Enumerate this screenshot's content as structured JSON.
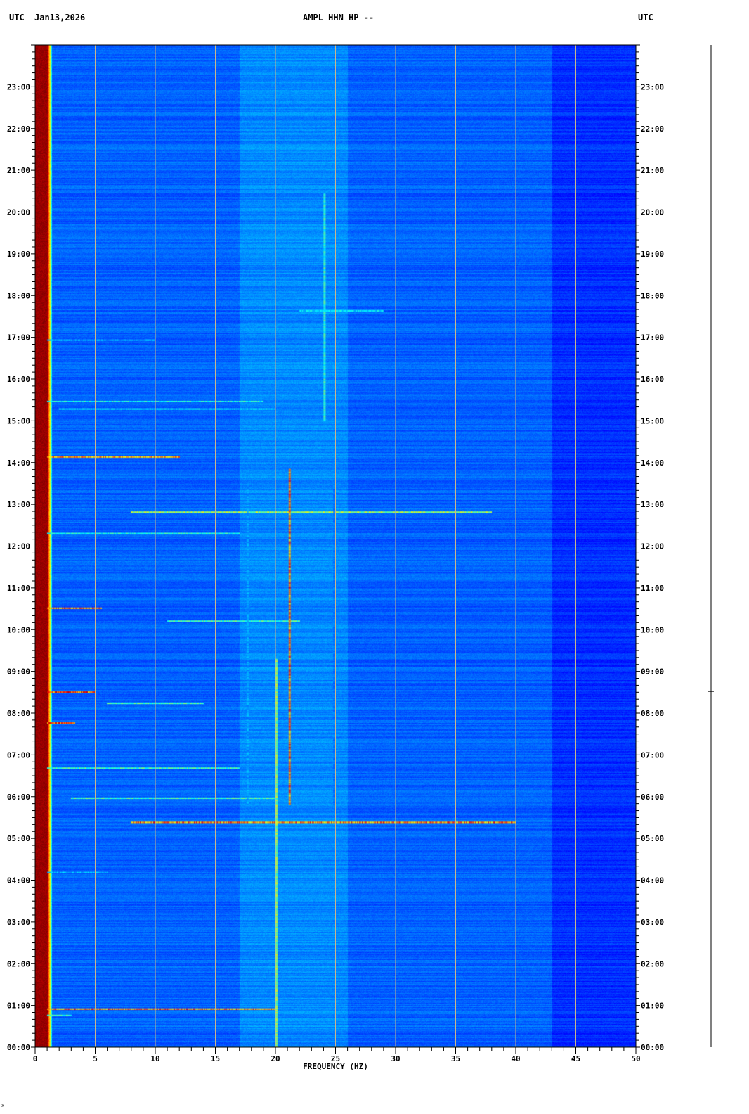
{
  "header": {
    "left_tz": "UTC",
    "date": "Jan13,2026",
    "title": "AMPL HHN HP --",
    "right_tz": "UTC"
  },
  "footer_mark": "x",
  "chart_data": {
    "type": "heatmap",
    "title": "AMPL HHN HP --",
    "xlabel": "FREQUENCY (HZ)",
    "ylabel": "UTC",
    "xlim": [
      0,
      50
    ],
    "ylim_hours": [
      0,
      24
    ],
    "x_ticks": [
      "0",
      "5",
      "10",
      "15",
      "20",
      "25",
      "30",
      "35",
      "40",
      "45",
      "50"
    ],
    "y_ticks": [
      "00:00",
      "01:00",
      "02:00",
      "03:00",
      "04:00",
      "05:00",
      "06:00",
      "07:00",
      "08:00",
      "09:00",
      "10:00",
      "11:00",
      "12:00",
      "13:00",
      "14:00",
      "15:00",
      "16:00",
      "17:00",
      "18:00",
      "19:00",
      "20:00",
      "21:00",
      "22:00",
      "23:00"
    ],
    "grid": "vertical lines every 5 Hz",
    "colormap": "jet (blue low, red high)",
    "colors": {
      "background": "#0a1ec0",
      "grid": "#c8b48c",
      "high": "#8b0000"
    },
    "low_frequency_band": {
      "fmin": 0,
      "fmax": 1.2,
      "intensity": "high, all day"
    },
    "frequency_lines": [
      {
        "freq": 20.0,
        "start": 0.0,
        "end": 9.3,
        "intensity": 0.55
      },
      {
        "freq": 21.1,
        "start": 5.8,
        "end": 13.85,
        "intensity": 0.8
      },
      {
        "freq": 24.0,
        "start": 15.0,
        "end": 20.45,
        "intensity": 0.45
      },
      {
        "freq": 17.6,
        "start": 5.8,
        "end": 13.5,
        "intensity": 0.3
      },
      {
        "freq": 24.8,
        "start": 5.8,
        "end": 13.5,
        "intensity": 0.25
      }
    ],
    "events": [
      {
        "time": 0.93,
        "fmin": 1,
        "fmax": 20,
        "intensity": 0.85
      },
      {
        "time": 0.78,
        "fmin": 1,
        "fmax": 3,
        "intensity": 0.5
      },
      {
        "time": 4.2,
        "fmin": 1,
        "fmax": 6,
        "intensity": 0.35
      },
      {
        "time": 5.4,
        "fmin": 8,
        "fmax": 40,
        "intensity": 0.85
      },
      {
        "time": 5.98,
        "fmin": 3,
        "fmax": 20,
        "intensity": 0.5
      },
      {
        "time": 6.7,
        "fmin": 1,
        "fmax": 17,
        "intensity": 0.5
      },
      {
        "time": 7.78,
        "fmin": 1,
        "fmax": 3.3,
        "intensity": 0.9
      },
      {
        "time": 8.25,
        "fmin": 6,
        "fmax": 14,
        "intensity": 0.5
      },
      {
        "time": 8.52,
        "fmin": 1,
        "fmax": 5,
        "intensity": 0.9
      },
      {
        "time": 10.22,
        "fmin": 11,
        "fmax": 22,
        "intensity": 0.5
      },
      {
        "time": 10.53,
        "fmin": 1,
        "fmax": 5.5,
        "intensity": 0.85
      },
      {
        "time": 12.32,
        "fmin": 1,
        "fmax": 17,
        "intensity": 0.45
      },
      {
        "time": 12.83,
        "fmin": 8,
        "fmax": 38,
        "intensity": 0.6
      },
      {
        "time": 14.15,
        "fmin": 1,
        "fmax": 12,
        "intensity": 0.8
      },
      {
        "time": 15.3,
        "fmin": 2,
        "fmax": 20,
        "intensity": 0.4
      },
      {
        "time": 15.48,
        "fmin": 1,
        "fmax": 19,
        "intensity": 0.45
      },
      {
        "time": 16.95,
        "fmin": 1,
        "fmax": 10,
        "intensity": 0.35
      },
      {
        "time": 17.65,
        "fmin": 22,
        "fmax": 29,
        "intensity": 0.4
      }
    ]
  }
}
